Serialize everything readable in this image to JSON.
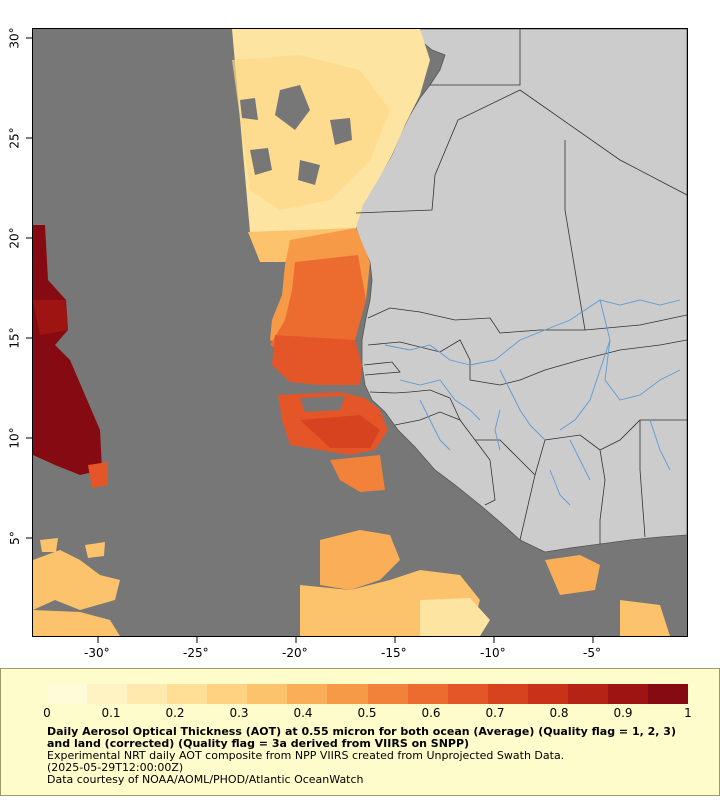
{
  "map": {
    "x_ticks": [
      "-30°",
      "-25°",
      "-20°",
      "-15°",
      "-10°",
      "-5°"
    ],
    "y_ticks": [
      "30°",
      "25°",
      "20°",
      "15°",
      "10°",
      "5°"
    ],
    "colors": {
      "no_data": "#777777",
      "land": "#cccccc",
      "river": "#5b9bd5",
      "border": "#333333"
    }
  },
  "colorbar": {
    "ticks": [
      "0",
      "0.1",
      "0.2",
      "0.3",
      "0.4",
      "0.5",
      "0.6",
      "0.7",
      "0.8",
      "0.9",
      "1"
    ],
    "colors": [
      "#fffad8",
      "#fff3c4",
      "#ffe9ac",
      "#ffdf95",
      "#fed281",
      "#fcc26c",
      "#fbae58",
      "#f79a47",
      "#f2823a",
      "#ec6c30",
      "#e45627",
      "#d8431f",
      "#c93219",
      "#b52315",
      "#9e1413",
      "#850a12"
    ]
  },
  "caption": {
    "title": "Daily Aerosol Optical Thickness (AOT) at 0.55 micron for both ocean (Average) (Quality flag = 1, 2, 3) and land (corrected) (Quality flag = 3a derived from VIIRS on SNPP)",
    "line1": "Experimental NRT daily AOT composite from NPP VIIRS created from Unprojected Swath Data.",
    "line2": "(2025-05-29T12:00:00Z)",
    "line3": "Data courtesy of NOAA/AOML/PHOD/Atlantic OceanWatch"
  }
}
